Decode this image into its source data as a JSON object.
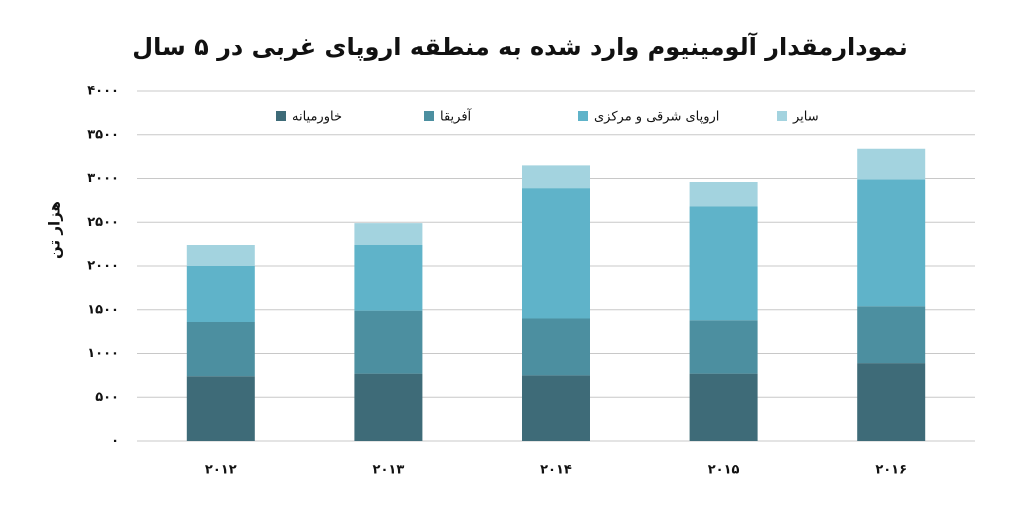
{
  "chart_data": {
    "type": "stacked_bar",
    "title": "نمودارمقدار آلومینیوم وارد شده به منطقه اروپای غربی در ۵ سال",
    "y_label": "هزار تن",
    "categories": [
      "۲۰۱۲",
      "۲۰۱۳",
      "۲۰۱۴",
      "۲۰۱۵",
      "۲۰۱۶"
    ],
    "series": [
      {
        "name": "خاورمیانه",
        "color": "#3e6b78",
        "values": [
          740,
          770,
          750,
          770,
          890
        ]
      },
      {
        "name": "آفریقا",
        "color": "#4c8fa0",
        "values": [
          620,
          720,
          650,
          610,
          650
        ]
      },
      {
        "name": "اروپای شرقی و مرکزی",
        "color": "#5fb3c9",
        "values": [
          640,
          750,
          1490,
          1300,
          1450
        ]
      },
      {
        "name": "سایر",
        "color": "#a3d3df",
        "values": [
          240,
          250,
          260,
          280,
          350
        ]
      }
    ],
    "ylim": [
      0,
      4000
    ],
    "yticks": [
      {
        "value": 0,
        "label": "۰"
      },
      {
        "value": 500,
        "label": "۵۰۰"
      },
      {
        "value": 1000,
        "label": "۱۰۰۰"
      },
      {
        "value": 1500,
        "label": "۱۵۰۰"
      },
      {
        "value": 2000,
        "label": "۲۰۰۰"
      },
      {
        "value": 2500,
        "label": "۲۵۰۰"
      },
      {
        "value": 3000,
        "label": "۳۰۰۰"
      },
      {
        "value": 3500,
        "label": "۳۵۰۰"
      },
      {
        "value": 4000,
        "label": "۴۰۰۰"
      }
    ],
    "grid": true,
    "legend": "top"
  }
}
